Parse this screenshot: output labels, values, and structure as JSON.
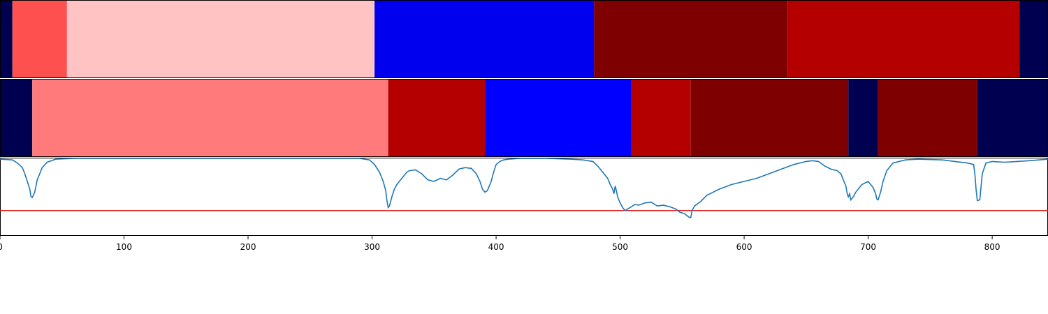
{
  "chart_data": [
    {
      "type": "heatmap",
      "xlim": [
        0,
        845
      ],
      "colors": {
        "navy": "#000050",
        "red_light": "#ff5050",
        "pink": "#ffc3c3",
        "blue": "#0000ee",
        "dark_red": "#7e0000",
        "red": "#b50000"
      },
      "segments": [
        {
          "start": 0,
          "end": 10,
          "color": "#000050"
        },
        {
          "start": 10,
          "end": 54,
          "color": "#ff5050"
        },
        {
          "start": 54,
          "end": 302,
          "color": "#ffc3c3"
        },
        {
          "start": 302,
          "end": 479,
          "color": "#0000ee"
        },
        {
          "start": 479,
          "end": 635,
          "color": "#7e0000"
        },
        {
          "start": 635,
          "end": 822,
          "color": "#b50000"
        },
        {
          "start": 822,
          "end": 845,
          "color": "#000050"
        }
      ]
    },
    {
      "type": "heatmap",
      "xlim": [
        0,
        845
      ],
      "segments": [
        {
          "start": 0,
          "end": 26,
          "color": "#000050"
        },
        {
          "start": 26,
          "end": 313,
          "color": "#ff7a7a"
        },
        {
          "start": 313,
          "end": 391,
          "color": "#b50000"
        },
        {
          "start": 391,
          "end": 509,
          "color": "#0000ff"
        },
        {
          "start": 509,
          "end": 557,
          "color": "#b50000"
        },
        {
          "start": 557,
          "end": 684,
          "color": "#7e0000"
        },
        {
          "start": 684,
          "end": 687,
          "color": "#000050"
        },
        {
          "start": 687,
          "end": 708,
          "color": "#000050"
        },
        {
          "start": 708,
          "end": 788,
          "color": "#7e0000"
        },
        {
          "start": 788,
          "end": 845,
          "color": "#000050"
        }
      ]
    },
    {
      "type": "line",
      "xlim": [
        0,
        845
      ],
      "ylim": [
        0,
        1
      ],
      "x_ticks": [
        0,
        100,
        200,
        300,
        400,
        500,
        600,
        700,
        800
      ],
      "x_tick_labels": [
        "0",
        "100",
        "200",
        "300",
        "400",
        "500",
        "600",
        "700",
        "800"
      ],
      "threshold": {
        "y": 0.32,
        "color": "#e02020"
      },
      "series": [
        {
          "color": "#1f77b4",
          "x": [
            0,
            10,
            14,
            18,
            20,
            22,
            24,
            25,
            26,
            28,
            30,
            34,
            38,
            45,
            60,
            100,
            200,
            290,
            298,
            302,
            306,
            309,
            311,
            312,
            313,
            314,
            316,
            318,
            320,
            322,
            325,
            328,
            330,
            335,
            340,
            345,
            350,
            355,
            360,
            365,
            370,
            375,
            380,
            384,
            387,
            389,
            391,
            393,
            396,
            398,
            400,
            403,
            406,
            410,
            420,
            440,
            460,
            470,
            478,
            482,
            486,
            490,
            492,
            494,
            495,
            496,
            497,
            498,
            500,
            502,
            504,
            506,
            508,
            510,
            512,
            515,
            520,
            525,
            530,
            535,
            540,
            545,
            548,
            552,
            555,
            556,
            557,
            558,
            560,
            565,
            570,
            580,
            590,
            600,
            610,
            620,
            630,
            640,
            650,
            655,
            660,
            665,
            670,
            675,
            678,
            680,
            682,
            683,
            684,
            685,
            686,
            688,
            690,
            695,
            700,
            704,
            706,
            707,
            708,
            710,
            712,
            715,
            720,
            730,
            740,
            760,
            770,
            780,
            785,
            786,
            787,
            788,
            790,
            792,
            795,
            800,
            810,
            820,
            830,
            845
          ],
          "y": [
            0.99,
            0.98,
            0.94,
            0.88,
            0.8,
            0.7,
            0.6,
            0.5,
            0.49,
            0.56,
            0.72,
            0.88,
            0.95,
            0.99,
            1.0,
            1.0,
            1.0,
            1.0,
            0.98,
            0.92,
            0.82,
            0.7,
            0.58,
            0.45,
            0.36,
            0.38,
            0.5,
            0.6,
            0.66,
            0.7,
            0.76,
            0.82,
            0.84,
            0.85,
            0.8,
            0.72,
            0.7,
            0.74,
            0.72,
            0.78,
            0.86,
            0.88,
            0.87,
            0.8,
            0.7,
            0.6,
            0.56,
            0.58,
            0.7,
            0.82,
            0.92,
            0.96,
            0.98,
            0.99,
            1.0,
            1.0,
            0.99,
            0.98,
            0.96,
            0.9,
            0.82,
            0.74,
            0.66,
            0.6,
            0.54,
            0.64,
            0.58,
            0.5,
            0.42,
            0.36,
            0.32,
            0.34,
            0.36,
            0.38,
            0.4,
            0.39,
            0.42,
            0.43,
            0.38,
            0.39,
            0.37,
            0.34,
            0.3,
            0.28,
            0.24,
            0.23,
            0.23,
            0.32,
            0.38,
            0.44,
            0.52,
            0.6,
            0.66,
            0.7,
            0.74,
            0.8,
            0.86,
            0.92,
            0.96,
            0.97,
            0.96,
            0.9,
            0.86,
            0.84,
            0.8,
            0.72,
            0.64,
            0.55,
            0.5,
            0.54,
            0.46,
            0.5,
            0.56,
            0.66,
            0.7,
            0.62,
            0.54,
            0.47,
            0.46,
            0.56,
            0.7,
            0.84,
            0.94,
            0.98,
            0.99,
            0.98,
            0.96,
            0.94,
            0.92,
            0.8,
            0.6,
            0.45,
            0.46,
            0.8,
            0.94,
            0.96,
            0.95,
            0.96,
            0.97,
            0.99
          ]
        }
      ]
    }
  ]
}
